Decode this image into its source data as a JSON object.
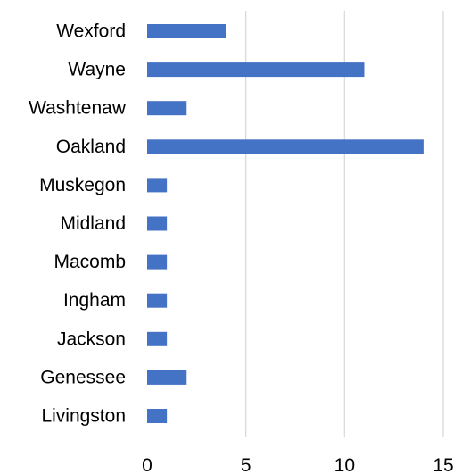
{
  "chart_data": {
    "type": "bar",
    "orientation": "horizontal",
    "categories": [
      "Wexford",
      "Wayne",
      "Washtenaw",
      "Oakland",
      "Muskegon",
      "Midland",
      "Macomb",
      "Ingham",
      "Jackson",
      "Genessee",
      "Livingston"
    ],
    "values": [
      4,
      11,
      2,
      14,
      1,
      1,
      1,
      1,
      1,
      2,
      1
    ],
    "xlim": [
      0,
      15
    ],
    "x_ticks": [
      0,
      5,
      10,
      15
    ],
    "x_tick_labels": [
      "0",
      "5",
      "10",
      "15"
    ],
    "title": "",
    "xlabel": "",
    "ylabel": "",
    "grid": "vertical",
    "legend": "none",
    "bar_color": "#4472c4",
    "grid_color": "#d9d9d9"
  }
}
